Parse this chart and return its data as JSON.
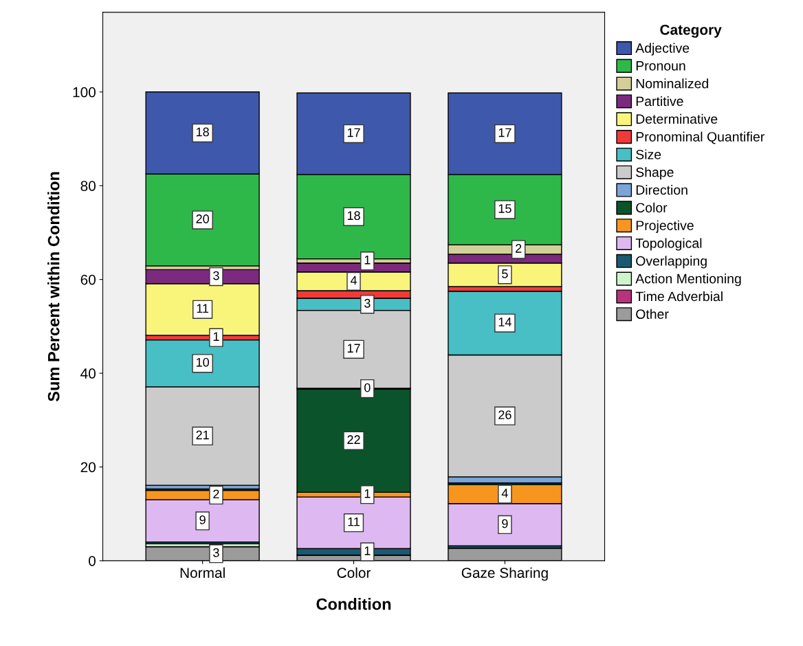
{
  "chart_data": {
    "type": "bar",
    "stacked": true,
    "xlabel": "Condition",
    "ylabel": "Sum Percent within Condition",
    "legend_title": "Category",
    "legend": "right",
    "categories": [
      "Normal",
      "Color",
      "Gaze Sharing"
    ],
    "ylim": [
      0,
      117
    ],
    "yticks": [
      0,
      20,
      40,
      60,
      80,
      100
    ],
    "grid": false,
    "series": [
      {
        "name": "Other",
        "color": "#9b9b9b",
        "values": [
          3,
          1.2,
          2.7
        ],
        "value_labels": [
          "3",
          null,
          null
        ]
      },
      {
        "name": "Time Adverbial",
        "color": "#b8337c",
        "values": [
          0,
          0,
          0
        ],
        "value_labels": [
          null,
          null,
          null
        ]
      },
      {
        "name": "Action Mentioning",
        "color": "#cdf5cd",
        "values": [
          0.6,
          0,
          0
        ],
        "value_labels": [
          null,
          null,
          null
        ]
      },
      {
        "name": "Overlapping",
        "color": "#1a5971",
        "values": [
          0.4,
          1.4,
          0.5
        ],
        "value_labels": [
          null,
          "1",
          null
        ]
      },
      {
        "name": "Topological",
        "color": "#deb8f0",
        "values": [
          9,
          11,
          9
        ],
        "value_labels": [
          "9",
          "11",
          "9"
        ]
      },
      {
        "name": "Projective",
        "color": "#f7961e",
        "values": [
          2,
          1,
          4
        ],
        "value_labels": [
          "2",
          "1",
          "4"
        ]
      },
      {
        "name": "Color",
        "color": "#0b542b",
        "values": [
          0.3,
          22,
          0.4
        ],
        "value_labels": [
          null,
          "22",
          null
        ]
      },
      {
        "name": "Direction",
        "color": "#7ba4d8",
        "values": [
          0.8,
          0.2,
          1.3
        ],
        "value_labels": [
          null,
          "0",
          null
        ]
      },
      {
        "name": "Shape",
        "color": "#cbcbcb",
        "values": [
          21,
          16.6,
          26
        ],
        "value_labels": [
          "21",
          "17",
          "26"
        ]
      },
      {
        "name": "Size",
        "color": "#47bfc5",
        "values": [
          10,
          2.6,
          13.6
        ],
        "value_labels": [
          "10",
          "3",
          "14"
        ]
      },
      {
        "name": "Pronominal Quantifier",
        "color": "#f03a3a",
        "values": [
          1,
          1.6,
          1
        ],
        "value_labels": [
          "1",
          null,
          null
        ]
      },
      {
        "name": "Determinative",
        "color": "#f9f57a",
        "values": [
          11,
          4,
          5
        ],
        "value_labels": [
          "11",
          "4",
          "5"
        ]
      },
      {
        "name": "Partitive",
        "color": "#7b2a7e",
        "values": [
          3,
          1.9,
          1.9
        ],
        "value_labels": [
          "3",
          null,
          null
        ]
      },
      {
        "name": "Nominalized",
        "color": "#d4cf98",
        "values": [
          0.8,
          0.9,
          2
        ],
        "value_labels": [
          null,
          "1",
          "2"
        ]
      },
      {
        "name": "Pronoun",
        "color": "#2fb84a",
        "values": [
          19.6,
          18,
          15
        ],
        "value_labels": [
          "20",
          "18",
          "15"
        ]
      },
      {
        "name": "Adjective",
        "color": "#3e58ac",
        "values": [
          17.5,
          17.4,
          17.4
        ],
        "value_labels": [
          "18",
          "17",
          "17"
        ]
      }
    ]
  }
}
